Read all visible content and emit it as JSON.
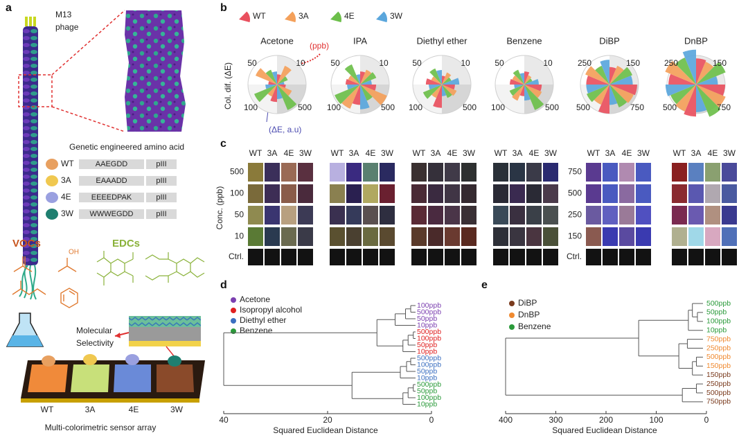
{
  "panel_a": {
    "letter": "a",
    "phage_label": [
      "M13",
      "phage"
    ],
    "table_title": "Genetic engineered amino acid",
    "rows": [
      {
        "name": "WT",
        "sequence": "AAEGDD",
        "anchor": "pIII"
      },
      {
        "name": "3A",
        "sequence": "EAAADD",
        "anchor": "pIII"
      },
      {
        "name": "4E",
        "sequence": "EEEEDPAK",
        "anchor": "pIII"
      },
      {
        "name": "3W",
        "sequence": "WWWEGDD",
        "anchor": "pIII"
      }
    ],
    "vocs": "VOCs",
    "edcs": "EDCs",
    "oh": "OH",
    "selectivity": [
      "Molecular",
      "Selectivity"
    ],
    "sensors": [
      "WT",
      "3A",
      "4E",
      "3W"
    ],
    "caption": "Multi-colorimetric sensor array"
  },
  "panel_b": {
    "letter": "b",
    "legend": [
      {
        "name": "WT",
        "color": "#e9505e"
      },
      {
        "name": "3A",
        "color": "#f4a05a"
      },
      {
        "name": "4E",
        "color": "#6cbf4a"
      },
      {
        "name": "3W",
        "color": "#5aa6dc"
      }
    ],
    "y_label": "Col. dif. (ΔE)",
    "conc_note": "(ppb)",
    "value_note": "(ΔE, a.u)",
    "charts": [
      {
        "title": "Acetone",
        "quadrant_labels": [
          10,
          50,
          100,
          500
        ],
        "values": [
          [
            35,
            70,
            40,
            25
          ],
          [
            30,
            80,
            55,
            45
          ],
          [
            60,
            45,
            85,
            40
          ],
          [
            30,
            55,
            95,
            50
          ]
        ]
      },
      {
        "title": "IPA",
        "quadrant_labels": [
          10,
          50,
          100,
          500
        ],
        "values": [
          [
            45,
            55,
            60,
            40
          ],
          [
            50,
            45,
            75,
            35
          ],
          [
            70,
            90,
            95,
            45
          ],
          [
            55,
            100,
            60,
            85
          ]
        ]
      },
      {
        "title": "Diethyl ether",
        "quadrant_labels": [
          10,
          50,
          100,
          500
        ],
        "values": [
          [
            30,
            45,
            35,
            60
          ],
          [
            55,
            40,
            60,
            50
          ],
          [
            80,
            50,
            70,
            45
          ],
          [
            45,
            55,
            50,
            40
          ]
        ]
      },
      {
        "title": "Benzene",
        "quadrant_labels": [
          10,
          50,
          100,
          500
        ],
        "values": [
          [
            45,
            35,
            30,
            50
          ],
          [
            50,
            45,
            55,
            40
          ],
          [
            40,
            60,
            55,
            35
          ],
          [
            60,
            65,
            95,
            55
          ]
        ]
      },
      {
        "title": "DiBP",
        "quadrant_labels": [
          150,
          250,
          500,
          750
        ],
        "values": [
          [
            60,
            70,
            85,
            80
          ],
          [
            80,
            90,
            70,
            85
          ],
          [
            100,
            75,
            85,
            80
          ],
          [
            95,
            90,
            85,
            70
          ]
        ]
      },
      {
        "title": "DnBP",
        "quadrant_labels": [
          150,
          250,
          500,
          750
        ],
        "values": [
          [
            90,
            85,
            110,
            75
          ],
          [
            95,
            115,
            100,
            120
          ],
          [
            110,
            100,
            95,
            105
          ],
          [
            100,
            110,
            120,
            95
          ]
        ]
      }
    ]
  },
  "panel_c": {
    "letter": "c",
    "y_label": "Conc. (ppb)",
    "columns": [
      "WT",
      "3A",
      "4E",
      "3W"
    ],
    "ctrl_label": "Ctrl.",
    "ctrl_color": "#121212",
    "row_labels_left": [
      500,
      100,
      50,
      10
    ],
    "row_labels_right": [
      750,
      500,
      250,
      150
    ],
    "groups": [
      {
        "colors": [
          [
            "#8a7a3a",
            "#3b2f5a",
            "#9a6a55",
            "#5a3040"
          ],
          [
            "#7a6a3a",
            "#3d2d55",
            "#8a5c4a",
            "#4a2a3c"
          ],
          [
            "#8f8a50",
            "#3a3570",
            "#b8a080",
            "#3c3a55"
          ],
          [
            "#5a7a35",
            "#2a3a50",
            "#6a6a50",
            "#3a3a48"
          ]
        ]
      },
      {
        "colors": [
          [
            "#b8b0e0",
            "#3a2a80",
            "#5a8070",
            "#2a2a60"
          ],
          [
            "#8a8050",
            "#2a2050",
            "#b0a860",
            "#6a2030"
          ],
          [
            "#3a3050",
            "#353a5a",
            "#5a5050",
            "#2e2e40"
          ],
          [
            "#5a5030",
            "#4a4030",
            "#6a6a40",
            "#5a4a30"
          ]
        ]
      },
      {
        "colors": [
          [
            "#3a3030",
            "#35303a",
            "#403a48",
            "#2e3030"
          ],
          [
            "#4a2a35",
            "#3a2a40",
            "#403545",
            "#352a30"
          ],
          [
            "#5a2a35",
            "#4a2a40",
            "#4a3548",
            "#3a3035"
          ],
          [
            "#5a3a2a",
            "#4a2a2a",
            "#6a3a30",
            "#5a2a20"
          ]
        ]
      },
      {
        "colors": [
          [
            "#2a3038",
            "#2a3545",
            "#3a3a48",
            "#2a2a70"
          ],
          [
            "#2a2a35",
            "#3a2a50",
            "#2a2a35",
            "#4a3a4a"
          ],
          [
            "#3a4a58",
            "#3a3040",
            "#3a4048",
            "#4a5050"
          ],
          [
            "#2e3038",
            "#3a3540",
            "#4a3540",
            "#4a5038"
          ]
        ]
      },
      {
        "colors": [
          [
            "#5a3a90",
            "#4a5ac0",
            "#b08ab0",
            "#4a5ac0"
          ],
          [
            "#5a3a90",
            "#4a5ac0",
            "#8a6aa0",
            "#4a5ac0"
          ],
          [
            "#6a5aa0",
            "#6060c0",
            "#9a7a98",
            "#5050c0"
          ],
          [
            "#8a5a50",
            "#3a3ab0",
            "#5a4aa0",
            "#3a3ab0"
          ]
        ]
      },
      {
        "colors": [
          [
            "#8a2020",
            "#5a80c0",
            "#8aa070",
            "#4a4a9a"
          ],
          [
            "#8a2a30",
            "#5a58b0",
            "#b0a8b0",
            "#4a5aa0"
          ],
          [
            "#7a2a50",
            "#6a5ab0",
            "#b09080",
            "#3a3a90"
          ],
          [
            "#b0b090",
            "#a0d8e8",
            "#d8a8c0",
            "#5070b8"
          ]
        ]
      }
    ]
  },
  "panel_d": {
    "letter": "d",
    "legend": [
      {
        "name": "Acetone",
        "color": "#7b3fb0"
      },
      {
        "name": "Isopropyl alcohol",
        "color": "#e02020"
      },
      {
        "name": "Diethyl ether",
        "color": "#3b6fc0"
      },
      {
        "name": "Benzene",
        "color": "#2a9a3a"
      }
    ],
    "leaves": [
      {
        "label": "100ppb",
        "group": 0
      },
      {
        "label": "500ppb",
        "group": 0
      },
      {
        "label": "50ppb",
        "group": 0
      },
      {
        "label": "10ppb",
        "group": 0
      },
      {
        "label": "500ppb",
        "group": 1
      },
      {
        "label": "100ppb",
        "group": 1
      },
      {
        "label": "50ppb",
        "group": 1
      },
      {
        "label": "10ppb",
        "group": 1
      },
      {
        "label": "500ppb",
        "group": 2
      },
      {
        "label": "100ppb",
        "group": 2
      },
      {
        "label": "50ppb",
        "group": 2
      },
      {
        "label": "10ppb",
        "group": 2
      },
      {
        "label": "500ppb",
        "group": 3
      },
      {
        "label": "50ppb",
        "group": 3
      },
      {
        "label": "100ppb",
        "group": 3
      },
      {
        "label": "10ppb",
        "group": 3
      }
    ],
    "links": [
      [
        0,
        1,
        4
      ],
      [
        16,
        2,
        5
      ],
      [
        17,
        3,
        7
      ],
      [
        4,
        5,
        3.5
      ],
      [
        19,
        6,
        4.5
      ],
      [
        20,
        7,
        5.5
      ],
      [
        18,
        21,
        10.5
      ],
      [
        8,
        9,
        4
      ],
      [
        23,
        10,
        4.8
      ],
      [
        24,
        11,
        6
      ],
      [
        12,
        13,
        3.5
      ],
      [
        26,
        14,
        4.5
      ],
      [
        27,
        15,
        5.5
      ],
      [
        25,
        28,
        15.3
      ],
      [
        22,
        29,
        40
      ]
    ],
    "xlim": [
      40,
      0
    ],
    "xticks": [
      40,
      20,
      0
    ],
    "x_label": "Squared Euclidean Distance"
  },
  "panel_e": {
    "letter": "e",
    "legend": [
      {
        "name": "DiBP",
        "color": "#7a3b1e"
      },
      {
        "name": "DnBP",
        "color": "#f08a30"
      },
      {
        "name": "Benzene",
        "color": "#2a9a3a"
      }
    ],
    "leaves": [
      {
        "label": "500ppb",
        "group": 2
      },
      {
        "label": "50ppb",
        "group": 2
      },
      {
        "label": "100ppb",
        "group": 2
      },
      {
        "label": "10ppb",
        "group": 2
      },
      {
        "label": "750ppb",
        "group": 1
      },
      {
        "label": "250ppb",
        "group": 1
      },
      {
        "label": "500ppb",
        "group": 1
      },
      {
        "label": "150ppb",
        "group": 1
      },
      {
        "label": "150ppb",
        "group": 0
      },
      {
        "label": "250ppb",
        "group": 0
      },
      {
        "label": "500ppb",
        "group": 0
      },
      {
        "label": "750ppb",
        "group": 0
      }
    ],
    "links": [
      [
        1,
        2,
        18
      ],
      [
        0,
        12,
        28
      ],
      [
        13,
        3,
        36
      ],
      [
        6,
        7,
        20
      ],
      [
        15,
        8,
        28
      ],
      [
        4,
        5,
        38
      ],
      [
        17,
        16,
        55
      ],
      [
        9,
        10,
        20
      ],
      [
        19,
        11,
        48
      ],
      [
        14,
        18,
        135
      ],
      [
        21,
        20,
        400
      ]
    ],
    "xlim": [
      400,
      0
    ],
    "xticks": [
      400,
      300,
      200,
      100,
      0
    ],
    "x_label": "Squared Euclidean Distance"
  }
}
